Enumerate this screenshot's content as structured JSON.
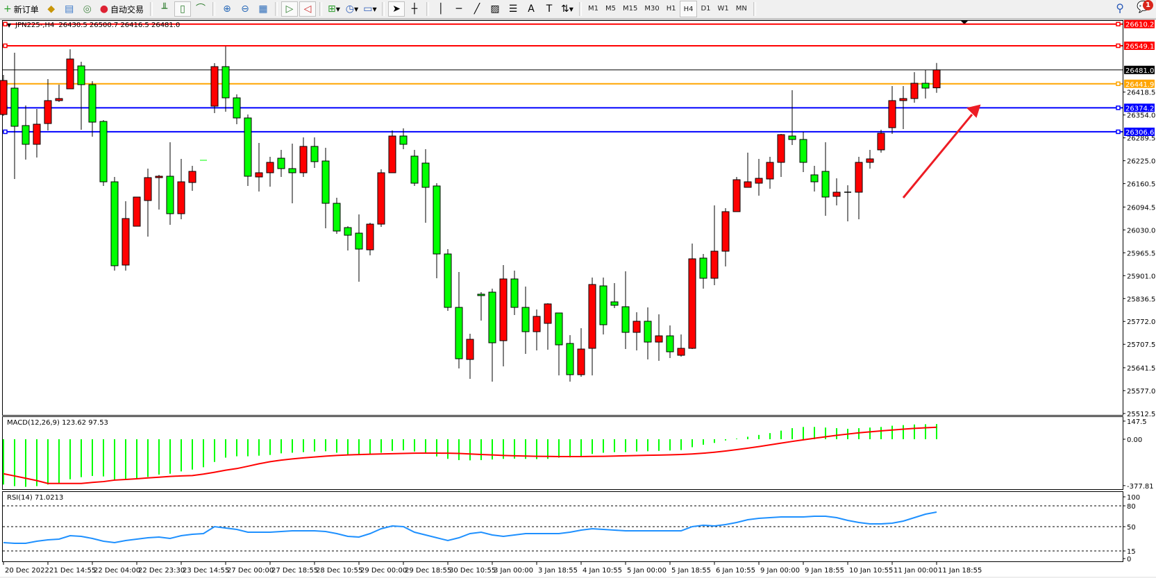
{
  "toolbar": {
    "new_order": "新订单",
    "auto_trading": "自动交易",
    "timeframes": [
      "M1",
      "M5",
      "M15",
      "M30",
      "H1",
      "H4",
      "D1",
      "W1",
      "MN"
    ],
    "active_timeframe": "H4",
    "notification_count": "1"
  },
  "chart": {
    "symbol_label": "JPN225-,H4",
    "ohlc_label": "26430.5 26500.7 26416.5 26481.0",
    "macd_label": "MACD(12,26,9) 123.62 97.53",
    "rsi_label": "RSI(14) 71.0213",
    "price_ticks": [
      "26418.5",
      "26354.0",
      "26289.5",
      "26225.0",
      "26160.5",
      "26094.5",
      "26030.0",
      "25965.5",
      "25901.0",
      "25836.5",
      "25772.0",
      "25707.5",
      "25641.5",
      "25577.0",
      "25512.5"
    ],
    "macd_ticks": [
      "147.5",
      "0.00",
      "-377.81"
    ],
    "rsi_ticks": [
      "100",
      "80",
      "50",
      "15",
      "0"
    ],
    "time_labels": [
      "20 Dec 2022",
      "21 Dec 14:55",
      "22 Dec 04:00",
      "22 Dec 23:30",
      "23 Dec 14:55",
      "27 Dec 00:00",
      "27 Dec 18:55",
      "28 Dec 10:55",
      "29 Dec 00:00",
      "29 Dec 18:55",
      "30 Dec 10:55",
      "3 Jan 00:00",
      "3 Jan 18:55",
      "4 Jan 10:55",
      "5 Jan 00:00",
      "5 Jan 18:55",
      "6 Jan 10:55",
      "9 Jan 00:00",
      "9 Jan 18:55",
      "10 Jan 10:55",
      "11 Jan 00:00",
      "11 Jan 18:55"
    ],
    "horizontal_lines": [
      {
        "price": "26610.2",
        "color": "#ff0000"
      },
      {
        "price": "26549.1",
        "color": "#ff0000"
      },
      {
        "price": "26481.0",
        "color": "#000000"
      },
      {
        "price": "26441.9",
        "color": "#ffa500"
      },
      {
        "price": "26374.2",
        "color": "#0000ff"
      },
      {
        "price": "26306.6",
        "color": "#0000ff"
      }
    ],
    "colors": {
      "bull": "#ff0000",
      "bear": "#00ff00",
      "macd_hist": "#00ff00",
      "macd_signal": "#ff0000",
      "rsi": "#1e90ff",
      "arrow": "#ed1c24"
    }
  },
  "chart_data": [
    {
      "type": "candlestick",
      "ylim": [
        25512.5,
        26610.2
      ],
      "ohlc": [
        [
          26355.4,
          26466.9,
          26351.4,
          26451.2
        ],
        [
          26429.7,
          26529.4,
          26173.5,
          26322.1
        ],
        [
          26324.1,
          26380.8,
          26228.2,
          26271.3
        ],
        [
          26271.3,
          26371.0,
          26234.1,
          26328.0
        ],
        [
          26329.9,
          26455.1,
          26310.4,
          26394.5
        ],
        [
          26394.5,
          26439.5,
          26390.6,
          26400.3
        ],
        [
          26427.7,
          26539.2,
          26427.7,
          26511.8
        ],
        [
          26492.3,
          26504.0,
          26312.3,
          26439.5
        ],
        [
          26439.5,
          26449.2,
          26292.8,
          26333.8
        ],
        [
          26335.8,
          26339.7,
          26153.9,
          26165.6
        ],
        [
          26165.6,
          26179.3,
          25915.3,
          25929.0
        ],
        [
          25930.9,
          26110.9,
          25915.3,
          26062.0
        ],
        [
          26040.4,
          26122.6,
          26040.4,
          26122.6
        ],
        [
          26112.8,
          26202.8,
          26011.1,
          26177.4
        ],
        [
          26177.4,
          26185.2,
          26087.4,
          26181.3
        ],
        [
          26181.3,
          26277.1,
          26044.4,
          26075.7
        ],
        [
          26075.7,
          26230.2,
          26060.0,
          26165.6
        ],
        [
          26163.7,
          26210.6,
          26140.2,
          26195.0
        ],
        [
          26226.3,
          26226.3,
          26226.3,
          26226.3
        ],
        [
          26378.8,
          26500.1,
          26359.3,
          26490.3
        ],
        [
          26490.3,
          26547.0,
          26363.2,
          26402.3
        ],
        [
          26402.3,
          26412.1,
          26328.0,
          26345.6
        ],
        [
          26345.6,
          26355.4,
          26153.9,
          26181.3
        ],
        [
          26179.3,
          26275.2,
          26138.2,
          26191.1
        ],
        [
          26191.1,
          26236.0,
          26151.9,
          26220.4
        ],
        [
          26232.1,
          26255.6,
          26179.3,
          26202.8
        ],
        [
          26202.8,
          26273.2,
          26105.0,
          26191.1
        ],
        [
          26191.1,
          26290.8,
          26179.3,
          26265.4
        ],
        [
          26265.4,
          26290.8,
          26204.7,
          26222.4
        ],
        [
          26224.3,
          26261.5,
          26034.6,
          26105.0
        ],
        [
          26105.0,
          26120.6,
          26018.9,
          26026.8
        ],
        [
          26036.5,
          26040.4,
          25972.0,
          26015.0
        ],
        [
          26020.9,
          26073.7,
          25884.0,
          25975.9
        ],
        [
          25973.9,
          26050.2,
          25958.3,
          26046.3
        ],
        [
          26046.3,
          26200.8,
          26038.5,
          26191.1
        ],
        [
          26191.1,
          26310.4,
          26191.1,
          26294.7
        ],
        [
          26294.7,
          26316.2,
          26257.6,
          26271.3
        ],
        [
          26238.0,
          26255.6,
          26153.9,
          26161.7
        ],
        [
          26218.4,
          26257.6,
          26050.2,
          26150.0
        ],
        [
          26153.9,
          26161.7,
          25893.7,
          25962.2
        ],
        [
          25962.2,
          25975.9,
          25801.8,
          25811.6
        ],
        [
          25811.6,
          25911.3,
          25639.5,
          25666.8
        ],
        [
          25664.9,
          25737.3,
          25610.1,
          25721.6
        ],
        [
          25848.8,
          25854.6,
          25774.4,
          25844.8
        ],
        [
          25854.6,
          25864.4,
          25602.3,
          25711.8
        ],
        [
          25717.7,
          25930.9,
          25645.3,
          25891.8
        ],
        [
          25891.8,
          25915.3,
          25790.1,
          25811.6
        ],
        [
          25811.6,
          25870.3,
          25680.5,
          25743.1
        ],
        [
          25743.1,
          25805.7,
          25690.3,
          25786.2
        ],
        [
          25766.6,
          25823.3,
          25692.3,
          25821.4
        ],
        [
          25795.9,
          25795.9,
          25619.9,
          25706.0
        ],
        [
          25709.9,
          25733.4,
          25602.3,
          25621.9
        ],
        [
          25621.9,
          25752.9,
          25616.0,
          25694.2
        ],
        [
          25696.2,
          25895.7,
          25619.9,
          25876.1
        ],
        [
          25872.2,
          25895.7,
          25735.3,
          25762.7
        ],
        [
          25827.2,
          25880.1,
          25809.6,
          25817.5
        ],
        [
          25813.5,
          25913.3,
          25694.2,
          25741.2
        ],
        [
          25741.2,
          25797.9,
          25690.3,
          25772.5
        ],
        [
          25772.5,
          25811.6,
          25664.9,
          25713.8
        ],
        [
          25713.8,
          25792.0,
          25661.0,
          25731.4
        ],
        [
          25731.4,
          25760.7,
          25668.8,
          25686.4
        ],
        [
          25676.6,
          25735.3,
          25672.7,
          25696.2
        ],
        [
          25696.2,
          25991.5,
          25694.2,
          25948.5
        ],
        [
          25950.5,
          25962.2,
          25864.4,
          25893.7
        ],
        [
          25893.7,
          26099.1,
          25874.2,
          25970.0
        ],
        [
          25970.0,
          26091.3,
          25927.0,
          26081.5
        ],
        [
          26081.5,
          26179.3,
          26081.5,
          26171.5
        ],
        [
          26150.0,
          26247.8,
          26150.0,
          26165.6
        ],
        [
          26161.7,
          26230.2,
          26126.5,
          26175.4
        ],
        [
          26173.5,
          26236.0,
          26146.1,
          26220.4
        ],
        [
          26220.4,
          26300.6,
          26179.3,
          26298.6
        ],
        [
          26294.7,
          26423.8,
          26269.3,
          26284.9
        ],
        [
          26284.9,
          26306.5,
          26193.0,
          26220.4
        ],
        [
          26185.2,
          26210.6,
          26138.2,
          26165.6
        ],
        [
          26195.0,
          26277.1,
          26069.8,
          26122.6
        ],
        [
          26124.6,
          26175.4,
          26099.1,
          26136.3
        ],
        [
          26136.3,
          26155.8,
          26054.1,
          26136.3
        ],
        [
          26136.3,
          26236.0,
          26060.0,
          26220.4
        ],
        [
          26220.4,
          26255.6,
          26202.8,
          26230.2
        ],
        [
          26255.6,
          26312.3,
          26247.8,
          26302.5
        ],
        [
          26318.2,
          26435.6,
          26300.6,
          26394.5
        ],
        [
          26394.5,
          26435.6,
          26314.3,
          26400.3
        ],
        [
          26400.3,
          26474.7,
          26388.6,
          26443.4
        ],
        [
          26443.4,
          26480.5,
          26400.3,
          26429.7
        ],
        [
          26430.5,
          26500.7,
          26416.5,
          26481.0
        ]
      ]
    },
    {
      "type": "bar+line",
      "ylim": [
        -377.81,
        147.5
      ],
      "macd": [
        -369,
        -382,
        -388,
        -382,
        -369,
        -356,
        -326,
        -309,
        -299,
        -303,
        -328,
        -328,
        -318,
        -307,
        -288,
        -281,
        -262,
        -247,
        -228,
        -185,
        -150,
        -139,
        -139,
        -134,
        -128,
        -115,
        -110,
        -105,
        -100,
        -98,
        -110,
        -125,
        -130,
        -125,
        -110,
        -95,
        -90,
        -100,
        -115,
        -140,
        -160,
        -170,
        -172,
        -170,
        -165,
        -160,
        -158,
        -160,
        -162,
        -160,
        -150,
        -148,
        -145,
        -120,
        -110,
        -105,
        -105,
        -100,
        -98,
        -95,
        -92,
        -88,
        -65,
        -45,
        -30,
        -10,
        5,
        20,
        35,
        50,
        70,
        90,
        100,
        100,
        95,
        90,
        85,
        90,
        95,
        100,
        110,
        115,
        120,
        122,
        123.62
      ],
      "signal": [
        -281,
        -299,
        -318,
        -337,
        -360,
        -360,
        -360,
        -360,
        -352,
        -345,
        -333,
        -328,
        -322,
        -315,
        -309,
        -303,
        -299,
        -296,
        -284,
        -269,
        -252,
        -239,
        -220,
        -200,
        -183,
        -170,
        -160,
        -152,
        -145,
        -138,
        -132,
        -128,
        -125,
        -122,
        -120,
        -118,
        -116,
        -114,
        -113,
        -113,
        -114,
        -116,
        -120,
        -124,
        -128,
        -132,
        -135,
        -137,
        -139,
        -140,
        -141,
        -141,
        -141,
        -140,
        -139,
        -137,
        -135,
        -133,
        -131,
        -129,
        -127,
        -124,
        -120,
        -114,
        -106,
        -96,
        -85,
        -73,
        -60,
        -46,
        -32,
        -18,
        -5,
        8,
        20,
        32,
        42,
        52,
        60,
        68,
        75,
        82,
        88,
        93,
        97.53
      ]
    },
    {
      "type": "line",
      "ylim": [
        0,
        100
      ],
      "levels": [
        80,
        50,
        15
      ],
      "rsi": [
        27,
        26,
        26,
        29,
        31,
        32,
        37,
        36,
        33,
        29,
        27,
        30,
        32,
        34,
        35,
        33,
        37,
        39,
        40,
        50,
        48,
        46,
        42,
        42,
        42,
        43,
        44,
        44,
        44,
        43,
        40,
        36,
        35,
        40,
        47,
        51,
        50,
        42,
        38,
        34,
        30,
        34,
        40,
        42,
        38,
        36,
        38,
        40,
        40,
        40,
        40,
        42,
        45,
        47,
        46,
        45,
        44,
        44,
        44,
        44,
        44,
        44,
        50,
        52,
        51,
        53,
        56,
        60,
        62,
        63,
        64,
        64,
        64,
        65,
        65,
        63,
        59,
        56,
        54,
        54,
        55,
        58,
        63,
        68,
        71.0213
      ]
    }
  ]
}
